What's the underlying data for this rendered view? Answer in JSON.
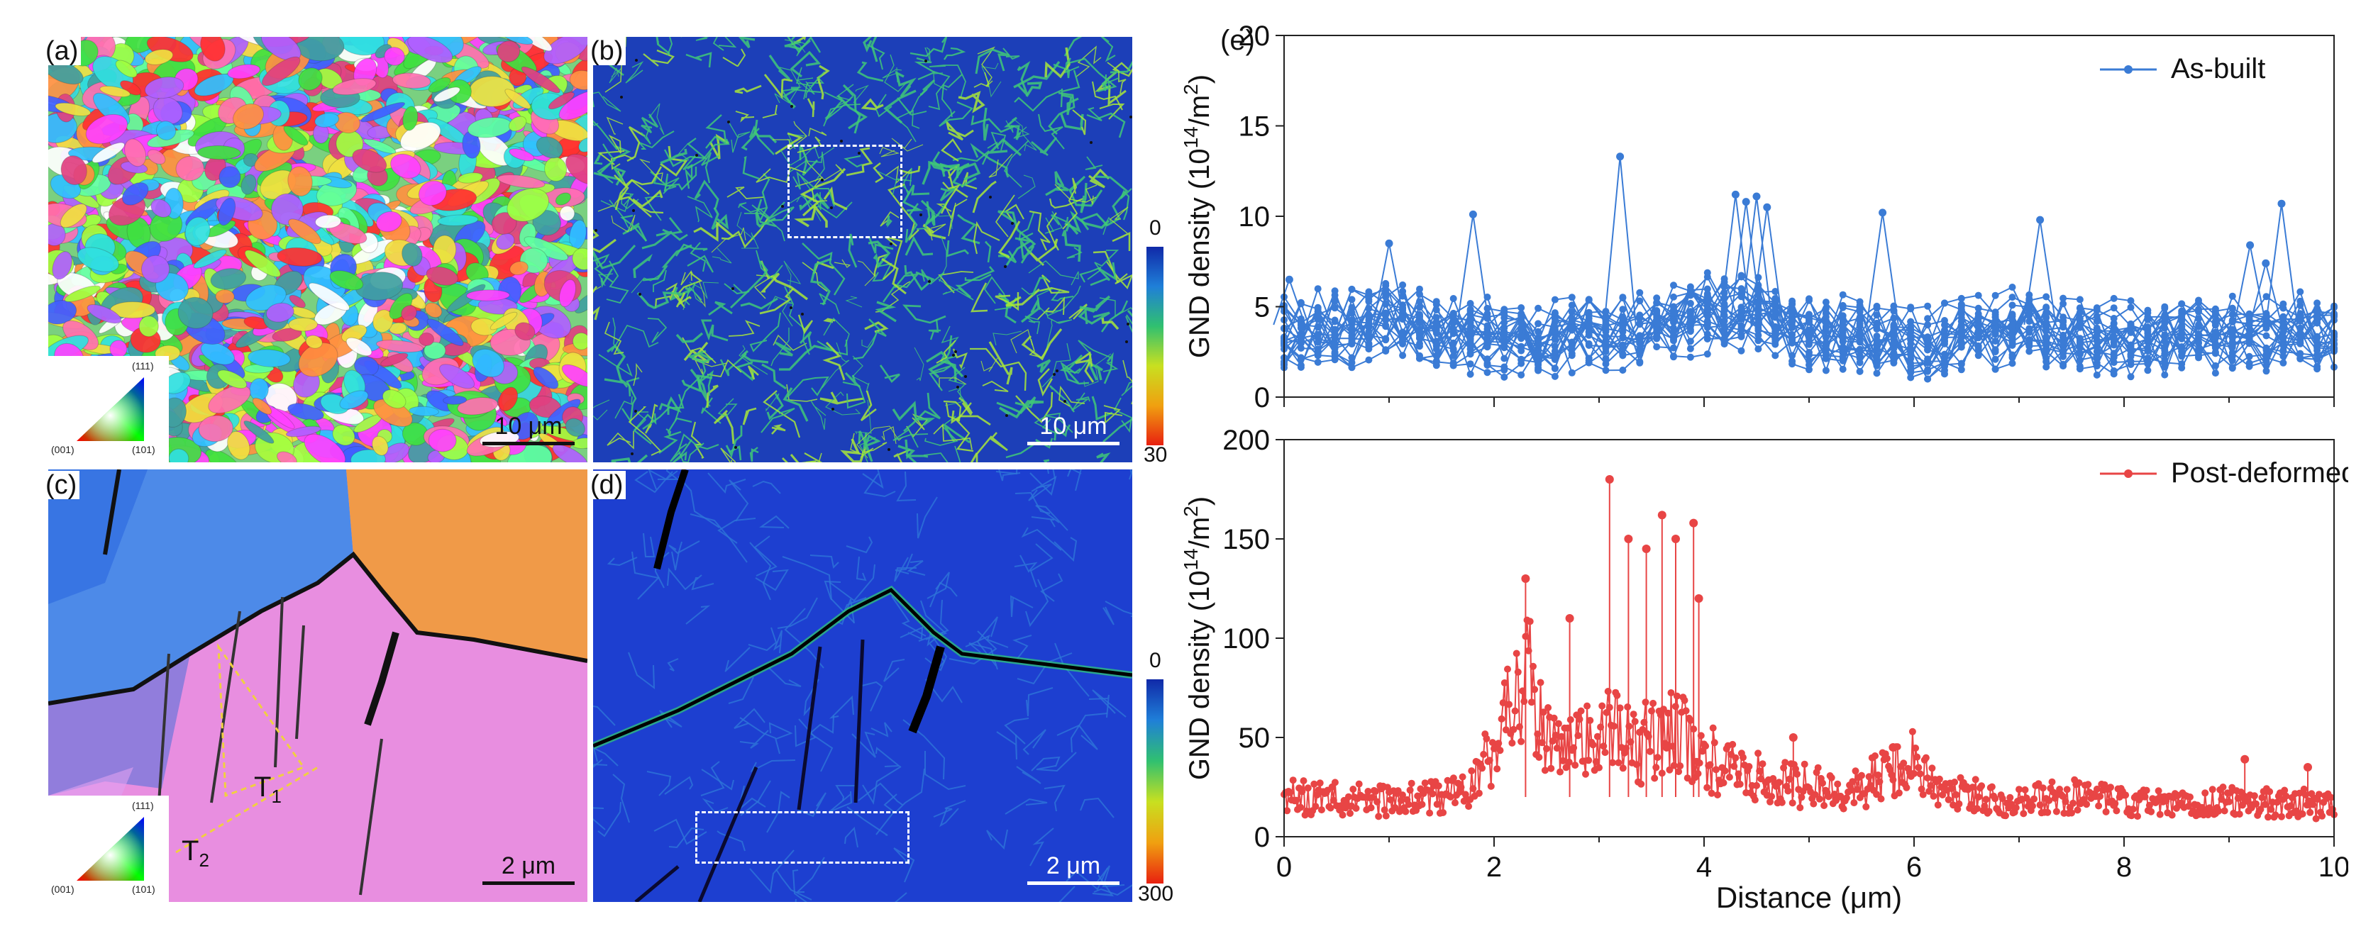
{
  "panels": {
    "a": {
      "label": "(a)",
      "scale": "10 μm",
      "key": {
        "top": "(111)",
        "left": "(001)",
        "right": "(101)"
      }
    },
    "b": {
      "label": "(b)",
      "scale": "10 μm",
      "cbar_min": "0",
      "cbar_max": "30"
    },
    "c": {
      "label": "(c)",
      "scale": "2 μm",
      "key": {
        "top": "(111)",
        "left": "(001)",
        "right": "(101)"
      },
      "t1": "T",
      "t1_sub": "1",
      "t2": "T",
      "t2_sub": "2"
    },
    "d": {
      "label": "(d)",
      "scale": "2 μm",
      "cbar_min": "0",
      "cbar_max": "300"
    }
  },
  "colors": {
    "as_built": "#3a7bd5",
    "post_deformed": "#e84545",
    "map_bg": "#1c3fc0"
  },
  "chart_data": [
    {
      "type": "line",
      "panel_label": "(e)",
      "ylabel": "GND density (10",
      "ylabel_sup": "14",
      "ylabel_tail": "/m",
      "ylabel_sup2": "2",
      "ylabel_end": ")",
      "xlabel": "",
      "xlim": [
        0,
        10
      ],
      "ylim": [
        0,
        20
      ],
      "yticks": [
        "0",
        "5",
        "10",
        "15",
        "20"
      ],
      "legend": "As-built",
      "legend_position": "top-right",
      "series": [
        {
          "name": "As-built",
          "profile": [
            [
              0,
              3.5
            ],
            [
              0.5,
              3.8
            ],
            [
              1,
              4.2
            ],
            [
              1.5,
              3.6
            ],
            [
              2,
              3.2
            ],
            [
              2.5,
              3.4
            ],
            [
              3,
              3.6
            ],
            [
              3.5,
              3.9
            ],
            [
              4,
              4.6
            ],
            [
              4.5,
              4.8
            ],
            [
              5,
              3.7
            ],
            [
              5.5,
              3.3
            ],
            [
              6,
              2.8
            ],
            [
              6.5,
              3.4
            ],
            [
              7,
              3.9
            ],
            [
              7.5,
              3.6
            ],
            [
              8,
              3.3
            ],
            [
              8.5,
              3.4
            ],
            [
              9,
              3.5
            ],
            [
              9.5,
              3.6
            ],
            [
              10,
              3.5
            ]
          ],
          "peaks": [
            [
              0.05,
              6.5
            ],
            [
              1.0,
              8.5
            ],
            [
              1.8,
              10.1
            ],
            [
              3.2,
              13.3
            ],
            [
              4.3,
              11.2
            ],
            [
              4.5,
              11.1
            ],
            [
              4.4,
              10.8
            ],
            [
              4.6,
              10.5
            ],
            [
              5.7,
              10.2
            ],
            [
              7.2,
              9.8
            ],
            [
              9.5,
              10.7
            ],
            [
              9.2,
              8.4
            ],
            [
              9.35,
              7.4
            ]
          ]
        }
      ]
    },
    {
      "type": "line",
      "ylabel": "GND density (10",
      "ylabel_sup": "14",
      "ylabel_tail": "/m",
      "ylabel_sup2": "2",
      "ylabel_end": ")",
      "xlabel": "Distance (μm)",
      "xlim": [
        0,
        10
      ],
      "ylim": [
        0,
        200
      ],
      "yticks": [
        "0",
        "50",
        "100",
        "150",
        "200"
      ],
      "xticks": [
        "0",
        "2",
        "4",
        "6",
        "8",
        "10"
      ],
      "legend": "Post-deformed",
      "legend_position": "top-right",
      "series": [
        {
          "name": "Post-deformed",
          "profile": [
            [
              0,
              20
            ],
            [
              0.5,
              19
            ],
            [
              1,
              18
            ],
            [
              1.5,
              20
            ],
            [
              1.8,
              25
            ],
            [
              2.0,
              45
            ],
            [
              2.2,
              70
            ],
            [
              2.3,
              95
            ],
            [
              2.4,
              60
            ],
            [
              2.6,
              40
            ],
            [
              2.8,
              45
            ],
            [
              3.0,
              55
            ],
            [
              3.2,
              50
            ],
            [
              3.4,
              45
            ],
            [
              3.6,
              55
            ],
            [
              3.8,
              50
            ],
            [
              4.0,
              40
            ],
            [
              4.4,
              30
            ],
            [
              5,
              25
            ],
            [
              5.5,
              24
            ],
            [
              5.8,
              35
            ],
            [
              6.0,
              38
            ],
            [
              6.3,
              22
            ],
            [
              7,
              18
            ],
            [
              7.5,
              20
            ],
            [
              8,
              17
            ],
            [
              8.5,
              16
            ],
            [
              9,
              18
            ],
            [
              9.5,
              17
            ],
            [
              10,
              16
            ]
          ],
          "peaks": [
            [
              2.3,
              130
            ],
            [
              2.72,
              110
            ],
            [
              3.1,
              180
            ],
            [
              3.28,
              150
            ],
            [
              3.45,
              145
            ],
            [
              3.6,
              162
            ],
            [
              3.73,
              150
            ],
            [
              3.9,
              158
            ],
            [
              3.95,
              120
            ],
            [
              4.85,
              50
            ],
            [
              5.8,
              45
            ],
            [
              9.15,
              39
            ],
            [
              9.75,
              35
            ]
          ]
        }
      ]
    }
  ]
}
